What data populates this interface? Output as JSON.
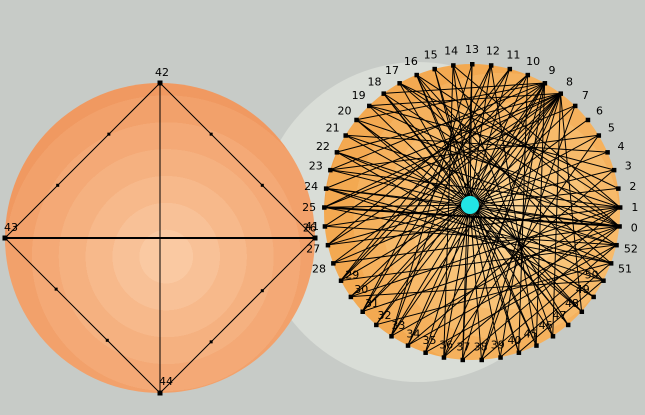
{
  "scene": {
    "background_color": "#c7cbc7",
    "halo_color": "#d9ddd7",
    "edge_color": "#000000",
    "node_color": "#000000",
    "label_color": "#000000",
    "hub_color": "#22e6e6"
  },
  "left_cluster": {
    "gradient_bands": [
      "#fac9a2",
      "#f8c197",
      "#f7b98b",
      "#f5b180",
      "#f4a976",
      "#f2a16b",
      "#f09961",
      "#ef9058",
      "#ee8350"
    ],
    "nodes": [
      {
        "label": "41",
        "angle": 0
      },
      {
        "label": "42",
        "angle": 90
      },
      {
        "label": "43",
        "angle": 180
      },
      {
        "label": "44",
        "angle": 270
      }
    ],
    "edges": [
      [
        "42",
        "43"
      ],
      [
        "42",
        "41"
      ],
      [
        "43",
        "44"
      ],
      [
        "44",
        "41"
      ],
      [
        "42",
        "44"
      ],
      [
        "43",
        "41"
      ]
    ],
    "thick_edges": [
      [
        "43",
        "41"
      ]
    ]
  },
  "right_cluster": {
    "gradient_bands": [
      "#fcd492",
      "#fbcc85",
      "#f9c377",
      "#f7ba6a",
      "#f5b15d",
      "#f3a951",
      "#f1a047",
      "#f09a40"
    ],
    "order_clockwise_from_top": [
      "13",
      "12",
      "11",
      "10",
      "9",
      "8",
      "7",
      "6",
      "5",
      "4",
      "3",
      "2",
      "1",
      "0",
      "52",
      "51",
      "50",
      "49",
      "48",
      "47",
      "46",
      "45",
      "40",
      "39",
      "38",
      "37",
      "36",
      "35",
      "34",
      "33",
      "32",
      "31",
      "30",
      "29",
      "28",
      "27",
      "26",
      "25",
      "24",
      "23",
      "22",
      "21",
      "20",
      "19",
      "18",
      "17",
      "16",
      "15",
      "14"
    ],
    "hub_connects_all": true,
    "thick_chords": [
      [
        "25",
        "0"
      ]
    ],
    "chords": [
      [
        "26",
        "52"
      ],
      [
        "8",
        "19"
      ],
      [
        "8",
        "22"
      ],
      [
        "8",
        "24"
      ],
      [
        "8",
        "25"
      ],
      [
        "8",
        "27"
      ],
      [
        "8",
        "28"
      ],
      [
        "8",
        "30"
      ],
      [
        "8",
        "31"
      ],
      [
        "8",
        "33"
      ],
      [
        "8",
        "35"
      ],
      [
        "8",
        "36"
      ],
      [
        "8",
        "38"
      ],
      [
        "8",
        "46"
      ],
      [
        "8",
        "48"
      ],
      [
        "9",
        "18"
      ],
      [
        "9",
        "20"
      ],
      [
        "9",
        "23"
      ],
      [
        "9",
        "26"
      ],
      [
        "9",
        "29"
      ],
      [
        "9",
        "32"
      ],
      [
        "9",
        "34"
      ],
      [
        "9",
        "37"
      ],
      [
        "9",
        "39"
      ],
      [
        "9",
        "45"
      ],
      [
        "0",
        "15"
      ],
      [
        "0",
        "17"
      ],
      [
        "0",
        "19"
      ],
      [
        "0",
        "21"
      ],
      [
        "0",
        "24"
      ],
      [
        "0",
        "28"
      ],
      [
        "0",
        "31"
      ],
      [
        "0",
        "34"
      ],
      [
        "0",
        "37"
      ],
      [
        "1",
        "14"
      ],
      [
        "1",
        "16"
      ],
      [
        "1",
        "20"
      ],
      [
        "1",
        "23"
      ],
      [
        "1",
        "27"
      ],
      [
        "1",
        "30"
      ],
      [
        "1",
        "33"
      ],
      [
        "1",
        "36"
      ],
      [
        "52",
        "18"
      ],
      [
        "52",
        "22"
      ],
      [
        "52",
        "29"
      ],
      [
        "52",
        "35"
      ],
      [
        "52",
        "38"
      ],
      [
        "51",
        "17"
      ],
      [
        "51",
        "25"
      ],
      [
        "51",
        "32"
      ],
      [
        "51",
        "39"
      ],
      [
        "50",
        "16"
      ],
      [
        "50",
        "24"
      ],
      [
        "50",
        "30"
      ],
      [
        "50",
        "40"
      ],
      [
        "13",
        "37"
      ],
      [
        "14",
        "36"
      ],
      [
        "12",
        "33"
      ],
      [
        "11",
        "31"
      ],
      [
        "15",
        "40"
      ],
      [
        "16",
        "45"
      ],
      [
        "10",
        "29"
      ],
      [
        "17",
        "2"
      ],
      [
        "19",
        "3"
      ],
      [
        "21",
        "4"
      ],
      [
        "23",
        "5"
      ],
      [
        "25",
        "7"
      ],
      [
        "27",
        "10"
      ],
      [
        "29",
        "11"
      ],
      [
        "31",
        "12"
      ],
      [
        "33",
        "13"
      ],
      [
        "18",
        "47"
      ],
      [
        "20",
        "48"
      ],
      [
        "22",
        "49"
      ],
      [
        "24",
        "51"
      ],
      [
        "34",
        "3"
      ],
      [
        "36",
        "5"
      ],
      [
        "38",
        "7"
      ],
      [
        "40",
        "10"
      ],
      [
        "45",
        "12"
      ],
      [
        "46",
        "14"
      ],
      [
        "47",
        "16"
      ],
      [
        "48",
        "18"
      ],
      [
        "49",
        "20"
      ]
    ]
  }
}
